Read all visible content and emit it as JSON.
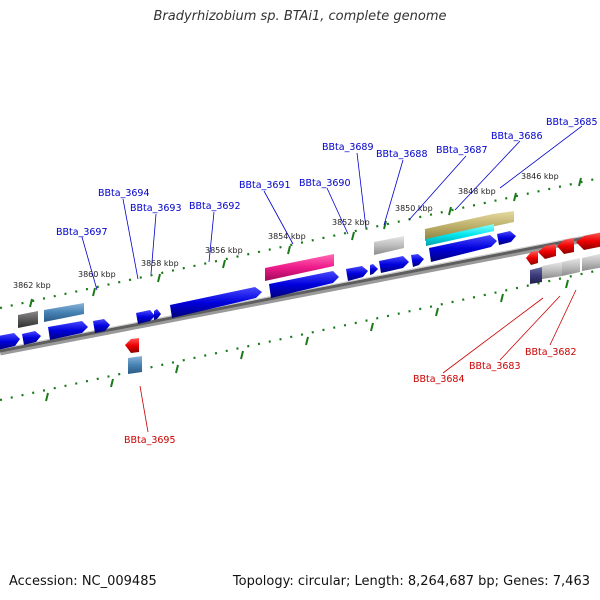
{
  "title": "Bradyrhizobium sp. BTAi1, complete genome",
  "footer": {
    "accession": "Accession: NC_009485",
    "topology": "Topology: circular; Length: 8,264,687 bp; Genes: 7,463"
  },
  "colors": {
    "forward_label": "#0000cc",
    "reverse_label": "#cc0000",
    "backbone": "#7a7a7a",
    "tick": "#1a7a1a"
  },
  "scale_ticks": [
    "3846 kbp",
    "3848 kbp",
    "3850 kbp",
    "3852 kbp",
    "3854 kbp",
    "3856 kbp",
    "3858 kbp",
    "3860 kbp",
    "3862 kbp"
  ],
  "forward_genes": [
    "BBta_3685",
    "BBta_3686",
    "BBta_3687",
    "BBta_3688",
    "BBta_3689",
    "BBta_3690",
    "BBta_3691",
    "BBta_3692",
    "BBta_3693",
    "BBta_3694",
    "BBta_3697"
  ],
  "reverse_genes": [
    "BBta_3682",
    "BBta_3683",
    "BBta_3684",
    "BBta_3695"
  ]
}
